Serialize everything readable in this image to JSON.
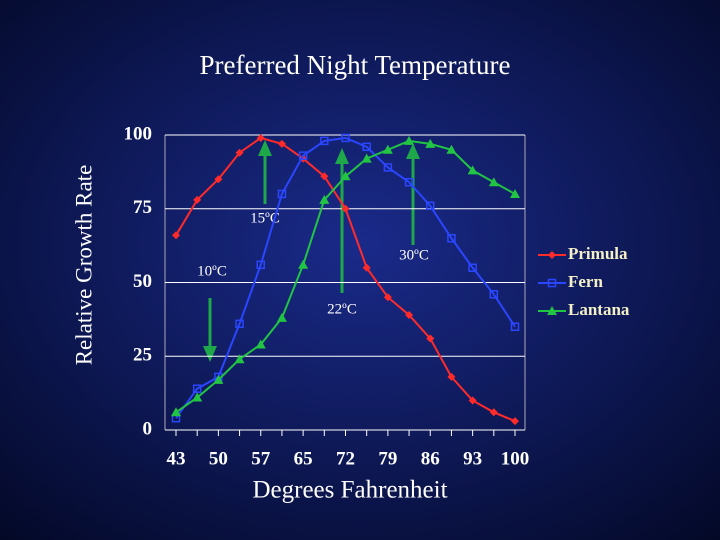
{
  "chart_data": {
    "type": "line",
    "title": "Preferred Night Temperature",
    "y_label": "Relative Growth Rate",
    "x_label": "Degrees Fahrenheit",
    "categories": [
      "43",
      null,
      "50",
      null,
      "57",
      null,
      "65",
      null,
      "72",
      null,
      "79",
      null,
      "86",
      null,
      "93",
      null,
      "100"
    ],
    "ylim": [
      0,
      100
    ],
    "yticks": [
      0,
      25,
      50,
      75,
      100
    ],
    "grid": true,
    "series": [
      {
        "name": "Primula",
        "color": "#ff2a2a",
        "marker": "diamond",
        "values": [
          66,
          78,
          85,
          94,
          99,
          97,
          92,
          86,
          75,
          55,
          45,
          39,
          31,
          18,
          10,
          6,
          3
        ]
      },
      {
        "name": "Fern",
        "color": "#2a46ff",
        "marker": "square",
        "values": [
          4,
          14,
          18,
          36,
          56,
          80,
          93,
          98,
          99,
          96,
          89,
          84,
          76,
          65,
          55,
          46,
          35
        ]
      },
      {
        "name": "Lantana",
        "color": "#22c444",
        "marker": "triangle",
        "values": [
          6,
          11,
          17,
          24,
          29,
          38,
          56,
          78,
          86,
          92,
          95,
          98,
          97,
          95,
          88,
          84,
          80
        ]
      }
    ],
    "annotations": [
      "15ºC",
      "30ºC",
      "10ºC",
      "22ºC"
    ]
  }
}
